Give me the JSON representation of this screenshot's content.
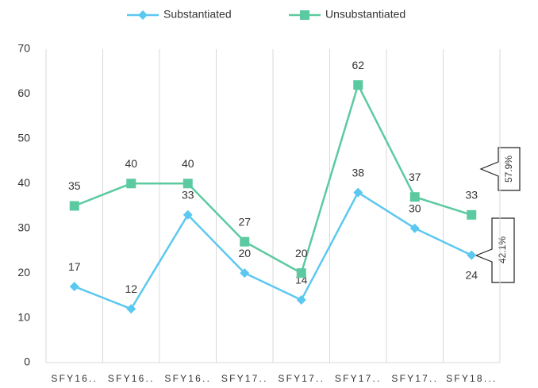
{
  "chart_data": {
    "type": "line",
    "categories": [
      "SFY16..",
      "SFY16..",
      "SFY16..",
      "SFY17..",
      "SFY17..",
      "SFY17..",
      "SFY17..",
      "SFY18..."
    ],
    "series": [
      {
        "name": "Substantiated",
        "color": "#5bc8f0",
        "marker": "diamond",
        "values": [
          17,
          12,
          33,
          20,
          14,
          38,
          30,
          24
        ]
      },
      {
        "name": "Unsubstantiated",
        "color": "#5ccaa0",
        "marker": "square",
        "values": [
          35,
          40,
          40,
          27,
          20,
          62,
          37,
          33
        ]
      }
    ],
    "ylim": [
      0,
      70
    ],
    "yticks": [
      0,
      10,
      20,
      30,
      40,
      50,
      60,
      70
    ],
    "grid": "x",
    "legend": "top",
    "annotations": [
      "57.9%",
      "42.1%"
    ]
  }
}
